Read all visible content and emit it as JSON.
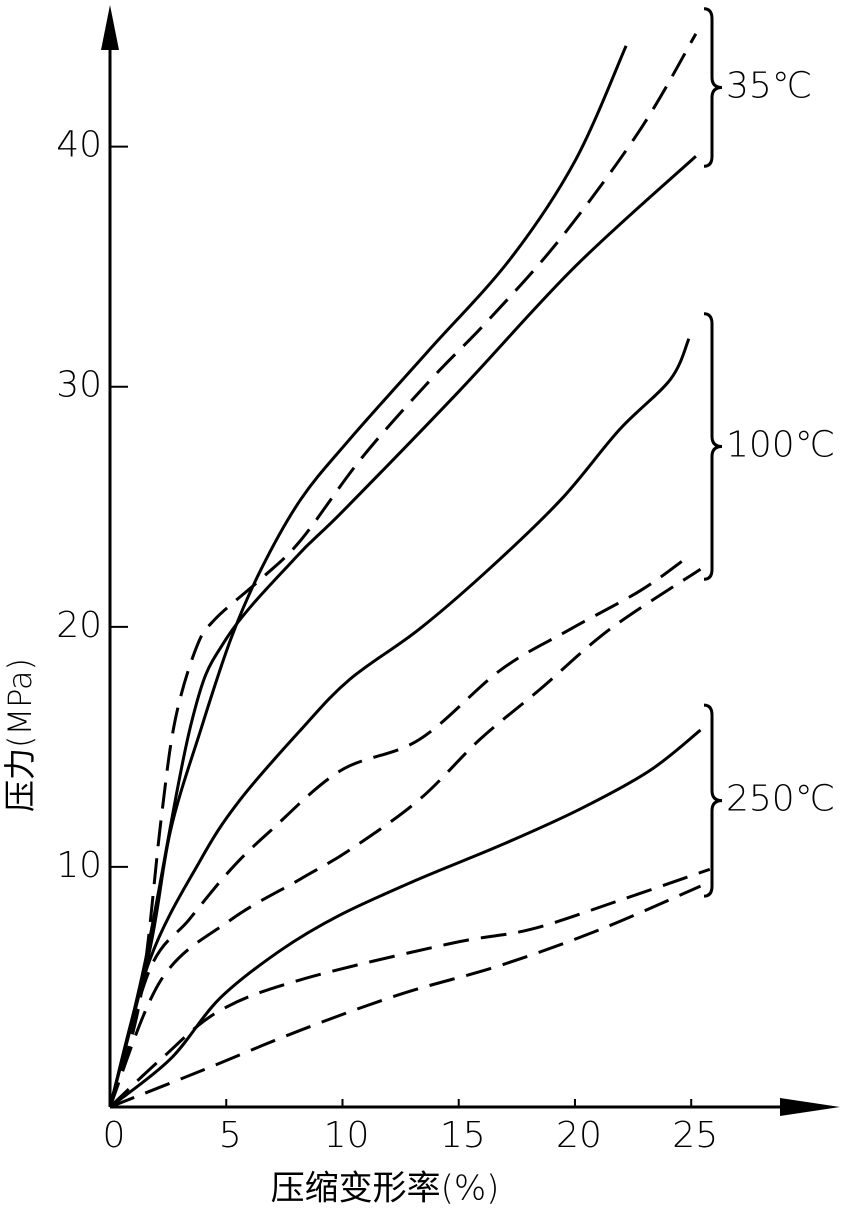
{
  "chart_data": {
    "type": "line",
    "x_label": "压缩变形率(%)",
    "y_label": "压力(MPa)",
    "xlim": [
      0,
      31.4
    ],
    "ylim": [
      0,
      45.9
    ],
    "xticks": [
      0,
      5,
      10,
      15,
      20,
      25
    ],
    "yticks": [
      10,
      20,
      30,
      40
    ],
    "color": "#000000",
    "groups": [
      {
        "label": "35℃",
        "series": [
          {
            "dash": false,
            "x": [
              0,
              1.7,
              2.6,
              3.9,
              5.2,
              6.5,
              8.2,
              10.3,
              13.7,
              17.2,
              20,
              22.2
            ],
            "values": [
              0,
              6.5,
              11.5,
              15.7,
              19.5,
              22.4,
              25.3,
              27.8,
              31.5,
              35.3,
              39.4,
              44.2
            ]
          },
          {
            "dash": false,
            "x": [
              0,
              1.5,
              3.5,
              5,
              8,
              10,
              15,
              20,
              25.2
            ],
            "values": [
              0,
              6,
              16,
              19.5,
              22.9,
              24.8,
              29.8,
              35,
              39.6
            ]
          },
          {
            "dash": true,
            "x": [
              0,
              1.3,
              2.2,
              2.8,
              3.7,
              4.5,
              6.5,
              8.2,
              10.8,
              13.8,
              16.3,
              19.4,
              22.8,
              25.2
            ],
            "values": [
              0,
              4.5,
              12,
              16.1,
              19.1,
              20.3,
              22,
              23.6,
              27,
              30.3,
              32.8,
              36.2,
              40.7,
              44.7
            ]
          }
        ]
      },
      {
        "label": "100℃",
        "series": [
          {
            "dash": false,
            "x": [
              0,
              1.7,
              3.9,
              5.6,
              8.2,
              10.3,
              13.3,
              16.3,
              19.4,
              21.9,
              24.1,
              24.9
            ],
            "values": [
              0,
              6.1,
              10.3,
              12.8,
              15.7,
              17.8,
              19.9,
              22.4,
              25.3,
              28.2,
              30.3,
              32
            ]
          },
          {
            "dash": true,
            "x": [
              0,
              1.7,
              3.4,
              5.2,
              6.9,
              9.9,
              13.3,
              16.8,
              19.8,
              22.8,
              24.7
            ],
            "values": [
              0,
              5.7,
              7.8,
              9.9,
              11.5,
              14,
              15.3,
              18.2,
              19.9,
              21.5,
              22.8
            ]
          },
          {
            "dash": true,
            "x": [
              0,
              2.2,
              5.2,
              8.2,
              10.3,
              13.3,
              15.9,
              18.5,
              21.5,
              25.4
            ],
            "values": [
              0,
              5.3,
              7.8,
              9.5,
              10.7,
              12.8,
              15.3,
              17.4,
              19.9,
              22.4
            ]
          }
        ]
      },
      {
        "label": "250℃",
        "series": [
          {
            "dash": false,
            "x": [
              0,
              2.6,
              4.7,
              7.3,
              9.9,
              13.3,
              16.8,
              20.2,
              23.2,
              25.4
            ],
            "values": [
              0,
              2,
              4.5,
              6.5,
              8,
              9.5,
              10.9,
              12.4,
              14,
              15.7
            ]
          },
          {
            "dash": true,
            "x": [
              0,
              2.2,
              4.7,
              8.2,
              14.6,
              18.1,
              21.9,
              25.8
            ],
            "values": [
              0,
              2,
              4,
              5.3,
              6.8,
              7.4,
              8.6,
              9.9
            ]
          },
          {
            "dash": true,
            "x": [
              0,
              3.9,
              8.2,
              12.5,
              16.8,
              21.1,
              25.4
            ],
            "values": [
              0,
              1.5,
              3.2,
              4.7,
              5.9,
              7.4,
              9.2
            ]
          }
        ]
      }
    ]
  }
}
